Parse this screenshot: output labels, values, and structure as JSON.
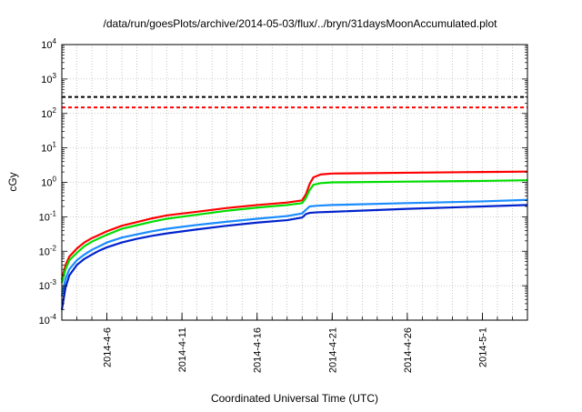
{
  "chart_data": {
    "type": "line",
    "title": "/data/run/goesPlots/archive/2014-05-03/flux/../bryn/31daysMoonAccumulated.plot",
    "xlabel": "Coordinated Universal Time (UTC)",
    "ylabel": "cGy",
    "yscale": "log",
    "ylim": [
      0.0001,
      10000
    ],
    "xlim": [
      "2014-04-03",
      "2014-05-04"
    ],
    "grid": true,
    "x_ticks": [
      {
        "date": "2014-04-06",
        "label": "2014-4-6"
      },
      {
        "date": "2014-04-11",
        "label": "2014-4-11"
      },
      {
        "date": "2014-04-16",
        "label": "2014-4-16"
      },
      {
        "date": "2014-04-21",
        "label": "2014-4-21"
      },
      {
        "date": "2014-04-26",
        "label": "2014-4-26"
      },
      {
        "date": "2014-05-01",
        "label": "2014-5-1"
      }
    ],
    "y_ticks": [
      {
        "value": 0.0001,
        "base": "10",
        "exp": "-4"
      },
      {
        "value": 0.001,
        "base": "10",
        "exp": "-3"
      },
      {
        "value": 0.01,
        "base": "10",
        "exp": "-2"
      },
      {
        "value": 0.1,
        "base": "10",
        "exp": "-1"
      },
      {
        "value": 1,
        "base": "10",
        "exp": "0"
      },
      {
        "value": 10,
        "base": "10",
        "exp": "1"
      },
      {
        "value": 100,
        "base": "10",
        "exp": "2"
      },
      {
        "value": 1000,
        "base": "10",
        "exp": "3"
      },
      {
        "value": 10000,
        "base": "10",
        "exp": "4"
      }
    ],
    "reference_lines": [
      {
        "value": 300,
        "color": "#000000",
        "style": "dashed"
      },
      {
        "value": 150,
        "color": "#ff0000",
        "style": "dashed"
      }
    ],
    "series": [
      {
        "color": "#ff0000",
        "points": [
          [
            "2014-04-03 00:00",
            0.0015
          ],
          [
            "2014-04-03 06:00",
            0.004
          ],
          [
            "2014-04-03 12:00",
            0.007
          ],
          [
            "2014-04-04 00:00",
            0.012
          ],
          [
            "2014-04-04 12:00",
            0.018
          ],
          [
            "2014-04-05 00:00",
            0.024
          ],
          [
            "2014-04-05 12:00",
            0.03
          ],
          [
            "2014-04-06 00:00",
            0.038
          ],
          [
            "2014-04-07 00:00",
            0.055
          ],
          [
            "2014-04-08 00:00",
            0.07
          ],
          [
            "2014-04-09 00:00",
            0.09
          ],
          [
            "2014-04-10 00:00",
            0.11
          ],
          [
            "2014-04-12 00:00",
            0.14
          ],
          [
            "2014-04-14 00:00",
            0.18
          ],
          [
            "2014-04-16 00:00",
            0.22
          ],
          [
            "2014-04-18 00:00",
            0.26
          ],
          [
            "2014-04-19 00:00",
            0.3
          ],
          [
            "2014-04-19 06:00",
            0.45
          ],
          [
            "2014-04-19 12:00",
            0.9
          ],
          [
            "2014-04-19 18:00",
            1.4
          ],
          [
            "2014-04-20 06:00",
            1.7
          ],
          [
            "2014-04-21 00:00",
            1.8
          ],
          [
            "2014-04-26 00:00",
            1.9
          ],
          [
            "2014-05-01 00:00",
            2.0
          ],
          [
            "2014-05-04 00:00",
            2.05
          ]
        ]
      },
      {
        "color": "#00dd00",
        "points": [
          [
            "2014-04-03 00:00",
            0.0012
          ],
          [
            "2014-04-03 06:00",
            0.003
          ],
          [
            "2014-04-03 12:00",
            0.0055
          ],
          [
            "2014-04-04 00:00",
            0.009
          ],
          [
            "2014-04-04 12:00",
            0.014
          ],
          [
            "2014-04-05 00:00",
            0.019
          ],
          [
            "2014-04-05 12:00",
            0.024
          ],
          [
            "2014-04-06 00:00",
            0.03
          ],
          [
            "2014-04-07 00:00",
            0.045
          ],
          [
            "2014-04-08 00:00",
            0.057
          ],
          [
            "2014-04-09 00:00",
            0.072
          ],
          [
            "2014-04-10 00:00",
            0.088
          ],
          [
            "2014-04-12 00:00",
            0.115
          ],
          [
            "2014-04-14 00:00",
            0.15
          ],
          [
            "2014-04-16 00:00",
            0.185
          ],
          [
            "2014-04-18 00:00",
            0.22
          ],
          [
            "2014-04-19 00:00",
            0.25
          ],
          [
            "2014-04-19 06:00",
            0.35
          ],
          [
            "2014-04-19 12:00",
            0.6
          ],
          [
            "2014-04-19 18:00",
            0.85
          ],
          [
            "2014-04-20 06:00",
            0.95
          ],
          [
            "2014-04-21 00:00",
            1.0
          ],
          [
            "2014-04-26 00:00",
            1.05
          ],
          [
            "2014-05-01 00:00",
            1.1
          ],
          [
            "2014-05-04 00:00",
            1.15
          ]
        ]
      },
      {
        "color": "#1a8cff",
        "points": [
          [
            "2014-04-03 00:00",
            0.0005
          ],
          [
            "2014-04-03 06:00",
            0.0016
          ],
          [
            "2014-04-03 12:00",
            0.003
          ],
          [
            "2014-04-04 00:00",
            0.0055
          ],
          [
            "2014-04-04 12:00",
            0.008
          ],
          [
            "2014-04-05 00:00",
            0.011
          ],
          [
            "2014-04-05 12:00",
            0.014
          ],
          [
            "2014-04-06 00:00",
            0.018
          ],
          [
            "2014-04-07 00:00",
            0.025
          ],
          [
            "2014-04-08 00:00",
            0.031
          ],
          [
            "2014-04-09 00:00",
            0.038
          ],
          [
            "2014-04-10 00:00",
            0.045
          ],
          [
            "2014-04-12 00:00",
            0.058
          ],
          [
            "2014-04-14 00:00",
            0.072
          ],
          [
            "2014-04-16 00:00",
            0.088
          ],
          [
            "2014-04-18 00:00",
            0.105
          ],
          [
            "2014-04-19 00:00",
            0.125
          ],
          [
            "2014-04-19 06:00",
            0.16
          ],
          [
            "2014-04-19 12:00",
            0.2
          ],
          [
            "2014-04-20 00:00",
            0.21
          ],
          [
            "2014-04-21 00:00",
            0.22
          ],
          [
            "2014-04-26 00:00",
            0.25
          ],
          [
            "2014-05-01 00:00",
            0.28
          ],
          [
            "2014-05-04 00:00",
            0.31
          ]
        ]
      },
      {
        "color": "#0022cc",
        "points": [
          [
            "2014-04-03 00:00",
            0.0002
          ],
          [
            "2014-04-03 06:00",
            0.0009
          ],
          [
            "2014-04-03 12:00",
            0.002
          ],
          [
            "2014-04-04 00:00",
            0.004
          ],
          [
            "2014-04-04 12:00",
            0.006
          ],
          [
            "2014-04-05 00:00",
            0.008
          ],
          [
            "2014-04-05 12:00",
            0.0105
          ],
          [
            "2014-04-06 00:00",
            0.013
          ],
          [
            "2014-04-07 00:00",
            0.018
          ],
          [
            "2014-04-08 00:00",
            0.023
          ],
          [
            "2014-04-09 00:00",
            0.028
          ],
          [
            "2014-04-10 00:00",
            0.033
          ],
          [
            "2014-04-12 00:00",
            0.043
          ],
          [
            "2014-04-14 00:00",
            0.055
          ],
          [
            "2014-04-16 00:00",
            0.068
          ],
          [
            "2014-04-18 00:00",
            0.08
          ],
          [
            "2014-04-19 00:00",
            0.095
          ],
          [
            "2014-04-19 06:00",
            0.12
          ],
          [
            "2014-04-19 12:00",
            0.13
          ],
          [
            "2014-04-20 00:00",
            0.135
          ],
          [
            "2014-04-21 00:00",
            0.14
          ],
          [
            "2014-04-26 00:00",
            0.17
          ],
          [
            "2014-05-01 00:00",
            0.2
          ],
          [
            "2014-05-04 00:00",
            0.22
          ]
        ]
      }
    ]
  }
}
